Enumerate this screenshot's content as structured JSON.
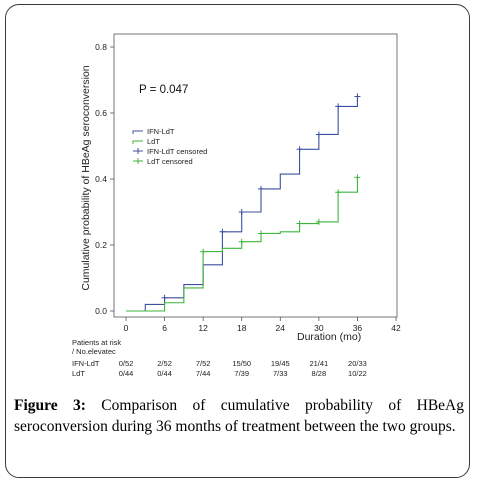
{
  "chart_data": {
    "type": "line",
    "step": true,
    "ylabel": "Cumulative probability of HBeAg seroconversion",
    "xlabel": "Duration (mo)",
    "x_ticks": [
      0,
      6,
      12,
      18,
      24,
      30,
      36,
      42
    ],
    "y_ticks": [
      "0.0",
      "0.2",
      "0.4",
      "0.6",
      "0.8"
    ],
    "xlim": [
      0,
      42
    ],
    "ylim": [
      0,
      0.8
    ],
    "annotation": "P = 0.047",
    "legend_position": "left",
    "series": [
      {
        "name": "IFN-LdT",
        "color": "#3d4f9f",
        "x": [
          0,
          3,
          6,
          9,
          12,
          15,
          18,
          21,
          24,
          27,
          30,
          33,
          36
        ],
        "y": [
          0.0,
          0.02,
          0.04,
          0.08,
          0.14,
          0.24,
          0.3,
          0.37,
          0.415,
          0.49,
          0.535,
          0.62,
          0.65
        ]
      },
      {
        "name": "LdT",
        "color": "#3db53d",
        "x": [
          0,
          6,
          9,
          12,
          15,
          18,
          21,
          24,
          27,
          30,
          33,
          36
        ],
        "y": [
          0.0,
          0.025,
          0.07,
          0.18,
          0.19,
          0.21,
          0.235,
          0.24,
          0.265,
          0.27,
          0.36,
          0.405
        ]
      }
    ],
    "censored": [
      {
        "name": "IFN-LdT censored",
        "color": "#3d4f9f",
        "points": [
          [
            6,
            0.04
          ],
          [
            15,
            0.24
          ],
          [
            18,
            0.3
          ],
          [
            21,
            0.37
          ],
          [
            27,
            0.49
          ],
          [
            30,
            0.535
          ],
          [
            33,
            0.62
          ],
          [
            36,
            0.65
          ]
        ]
      },
      {
        "name": "LdT censored",
        "color": "#3db53d",
        "points": [
          [
            12,
            0.18
          ],
          [
            18,
            0.21
          ],
          [
            21,
            0.235
          ],
          [
            27,
            0.265
          ],
          [
            30,
            0.27
          ],
          [
            33,
            0.36
          ],
          [
            36,
            0.405
          ]
        ]
      }
    ]
  },
  "risk_table": {
    "header": [
      "Patients at risk",
      "/ No.elevatec"
    ],
    "columns_x": [
      0,
      6,
      12,
      18,
      24,
      30,
      36
    ],
    "rows": [
      {
        "label": "IFN-LdT",
        "values": [
          "0/52",
          "2/52",
          "7/52",
          "15/50",
          "19/45",
          "21/41",
          "20/33"
        ]
      },
      {
        "label": "LdT",
        "values": [
          "0/44",
          "0/44",
          "7/44",
          "7/39",
          "7/33",
          "8/28",
          "10/22"
        ]
      }
    ]
  },
  "caption": {
    "label": "Figure 3:",
    "text": "Comparison of cumulative probability of HBeAg seroconversion during 36 months of treatment between the two groups."
  }
}
